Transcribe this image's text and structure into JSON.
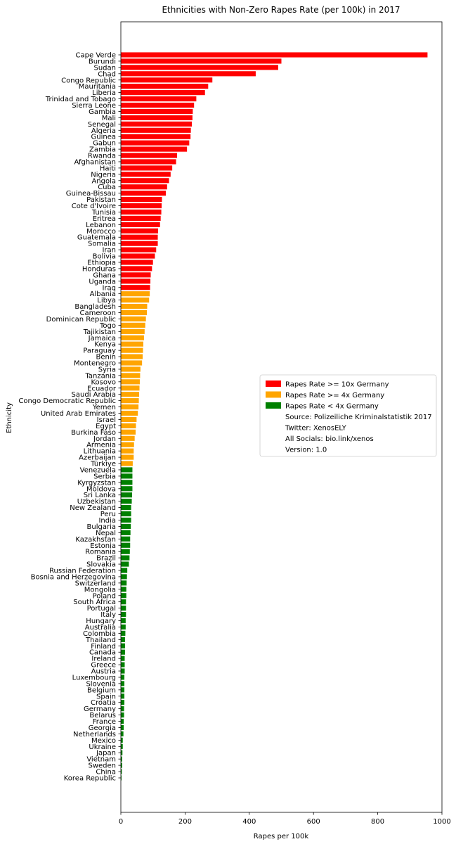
{
  "chart_data": {
    "type": "bar",
    "orientation": "horizontal",
    "title": "Ethnicities with Non-Zero Rapes Rate (per 100k) in 2017",
    "xlabel": "Rapes per 100k",
    "ylabel": "Ethnicity",
    "xlim": [
      0,
      1000
    ],
    "xticks": [
      0,
      200,
      400,
      600,
      800,
      1000
    ],
    "grid": false,
    "legend_position": "right",
    "colors": {
      "high": "#ff0000",
      "mid": "#ffa500",
      "low": "#008000"
    },
    "legend": [
      {
        "label": "Rapes Rate >= 10x Germany",
        "color": "#ff0000"
      },
      {
        "label": "Rapes Rate >= 4x Germany",
        "color": "#ffa500"
      },
      {
        "label": "Rapes Rate < 4x Germany",
        "color": "#008000"
      },
      {
        "label": "Source: Polizeiliche Kriminalstatistik 2017"
      },
      {
        "label": "Twitter: XenosELY"
      },
      {
        "label": "All Socials: bio.link/xenos"
      },
      {
        "label": "Version: 1.0"
      }
    ],
    "categories": [
      "Cape Verde",
      "Burundi",
      "Sudan",
      "Chad",
      "Congo Republic",
      "Mauritania",
      "Liberia",
      "Trinidad and Tobago",
      "Sierra Leone",
      "Gambia",
      "Mali",
      "Senegal",
      "Algeria",
      "Guinea",
      "Gabun",
      "Zambia",
      "Rwanda",
      "Afghanistan",
      "Haiti",
      "Nigeria",
      "Angola",
      "Cuba",
      "Guinea-Bissau",
      "Pakistan",
      "Cote d'Ivoire",
      "Tunisia",
      "Eritrea",
      "Lebanon",
      "Morocco",
      "Guatemala",
      "Somalia",
      "Iran",
      "Bolivia",
      "Ethiopia",
      "Honduras",
      "Ghana",
      "Uganda",
      "Iraq",
      "Albania",
      "Libya",
      "Bangladesh",
      "Cameroon",
      "Dominican Republic",
      "Togo",
      "Tajikistan",
      "Jamaica",
      "Kenya",
      "Paraguay",
      "Benin",
      "Montenegro",
      "Syria",
      "Tanzania",
      "Kosovo",
      "Ecuador",
      "Saudi Arabia",
      "Congo Democratic Republic",
      "Yemen",
      "United Arab Emirates",
      "Israel",
      "Egypt",
      "Burkina Faso",
      "Jordan",
      "Armenia",
      "Lithuania",
      "Azerbaijan",
      "Türkiye",
      "Venezuela",
      "Serbia",
      "Kyrgyzstan",
      "Moldova",
      "Sri Lanka",
      "Uzbekistan",
      "New Zealand",
      "Peru",
      "India",
      "Bulgaria",
      "Nepal",
      "Kazakhstan",
      "Estonia",
      "Romania",
      "Brazil",
      "Slovakia",
      "Russian Federation",
      "Bosnia and Herzegovina",
      "Switzerland",
      "Mongolia",
      "Poland",
      "South Africa",
      "Portugal",
      "Italy",
      "Hungary",
      "Australia",
      "Colombia",
      "Thailand",
      "Finland",
      "Canada",
      "Ireland",
      "Greece",
      "Austria",
      "Luxembourg",
      "Slovenia",
      "Belgium",
      "Spain",
      "Croatia",
      "Germany",
      "Belarus",
      "France",
      "Georgia",
      "Netherlands",
      "Mexico",
      "Ukraine",
      "Japan",
      "Vietnam",
      "Sweden",
      "China",
      "Korea Republic"
    ],
    "values": [
      955,
      500,
      490,
      420,
      285,
      272,
      262,
      235,
      228,
      224,
      223,
      221,
      218,
      217,
      213,
      206,
      175,
      172,
      160,
      155,
      150,
      144,
      140,
      128,
      127,
      126,
      124,
      122,
      116,
      115,
      115,
      110,
      106,
      100,
      97,
      93,
      92,
      91,
      90,
      88,
      82,
      81,
      78,
      76,
      74,
      72,
      70,
      69,
      68,
      66,
      61,
      60,
      59,
      58,
      57,
      56,
      55,
      53,
      49,
      47,
      46,
      43,
      41,
      40,
      40,
      37,
      36,
      36,
      36,
      36,
      35,
      34,
      32,
      32,
      32,
      31,
      30,
      29,
      29,
      28,
      27,
      25,
      20,
      19,
      18,
      17,
      17,
      16,
      16,
      16,
      15,
      15,
      14,
      13,
      13,
      13,
      12,
      12,
      12,
      11,
      11,
      11,
      11,
      11,
      10,
      10,
      9,
      9,
      8,
      6,
      6,
      5,
      4,
      4,
      3,
      2
    ],
    "groups": [
      "high",
      "high",
      "high",
      "high",
      "high",
      "high",
      "high",
      "high",
      "high",
      "high",
      "high",
      "high",
      "high",
      "high",
      "high",
      "high",
      "high",
      "high",
      "high",
      "high",
      "high",
      "high",
      "high",
      "high",
      "high",
      "high",
      "high",
      "high",
      "high",
      "high",
      "high",
      "high",
      "high",
      "high",
      "high",
      "high",
      "high",
      "high",
      "mid",
      "mid",
      "mid",
      "mid",
      "mid",
      "mid",
      "mid",
      "mid",
      "mid",
      "mid",
      "mid",
      "mid",
      "mid",
      "mid",
      "mid",
      "mid",
      "mid",
      "mid",
      "mid",
      "mid",
      "mid",
      "mid",
      "mid",
      "mid",
      "mid",
      "mid",
      "mid",
      "mid",
      "low",
      "low",
      "low",
      "low",
      "low",
      "low",
      "low",
      "low",
      "low",
      "low",
      "low",
      "low",
      "low",
      "low",
      "low",
      "low",
      "low",
      "low",
      "low",
      "low",
      "low",
      "low",
      "low",
      "low",
      "low",
      "low",
      "low",
      "low",
      "low",
      "low",
      "low",
      "low",
      "low",
      "low",
      "low",
      "low",
      "low",
      "low",
      "low",
      "low",
      "low",
      "low",
      "low",
      "low",
      "low",
      "low",
      "low",
      "low",
      "low",
      "low"
    ]
  }
}
